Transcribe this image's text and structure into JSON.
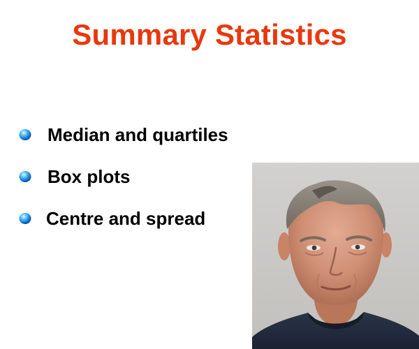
{
  "slide": {
    "title": "Summary Statistics",
    "title_color": "#e8380d",
    "bullet_color": "#1e90e0",
    "bullets": [
      {
        "label": "Median and quartiles",
        "icon": "blue-sphere-bullet-icon"
      },
      {
        "label": "Box plots",
        "icon": "blue-sphere-bullet-icon"
      },
      {
        "label": "Centre and spread",
        "icon": "blue-sphere-bullet-icon"
      }
    ],
    "photo": {
      "subject": "portrait of a grey-haired man"
    }
  }
}
